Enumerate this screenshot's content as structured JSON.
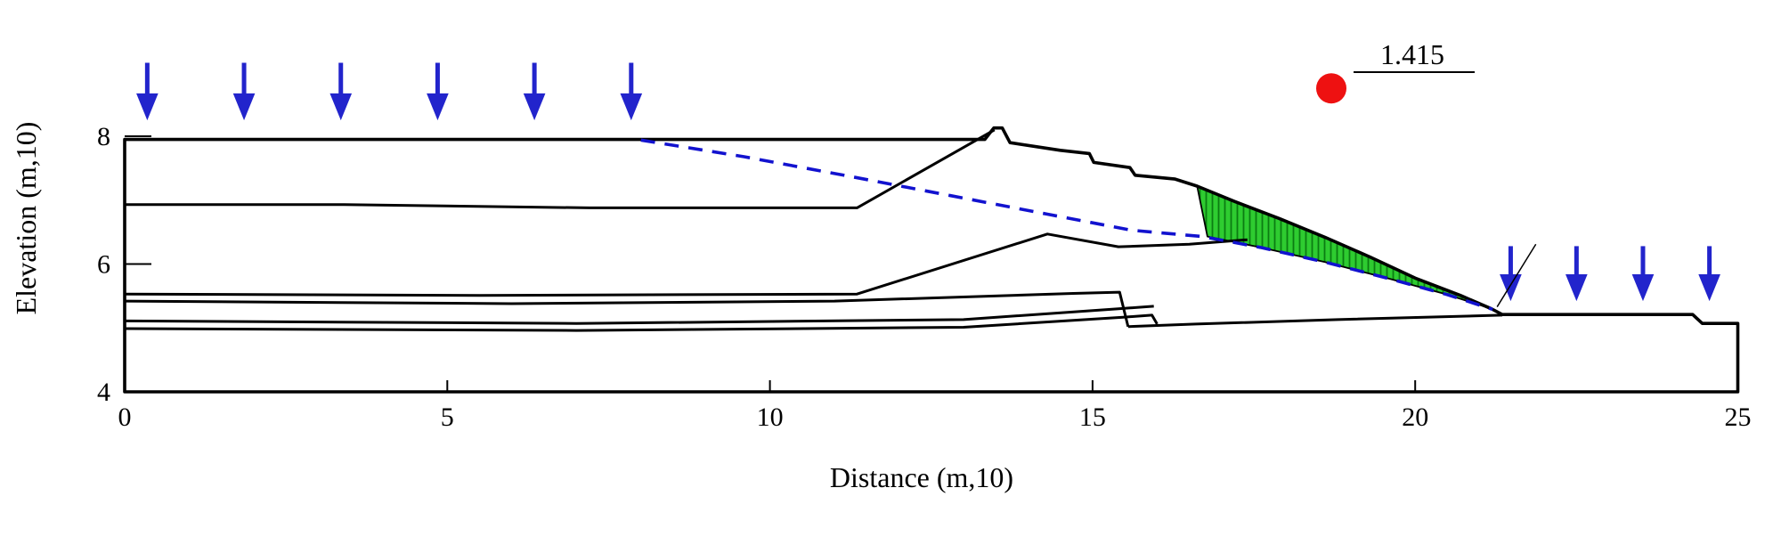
{
  "chart_data": {
    "type": "line",
    "factor_of_safety": "1.415",
    "xlabel": "Distance (m,10)",
    "ylabel": "Elevation (m,10)",
    "xlim": [
      0,
      25
    ],
    "ylim": [
      4,
      8
    ],
    "x_ticks": {
      "values": [
        0,
        5,
        10,
        15,
        20,
        25
      ],
      "marks": [
        5,
        10,
        15,
        20
      ]
    },
    "y_ticks": {
      "values": [
        8,
        6,
        4
      ],
      "marks": [
        6,
        8
      ]
    },
    "slip_center_marker": {
      "x": 18.7,
      "y": 8.75
    },
    "ground_outline": [
      [
        0,
        4
      ],
      [
        0,
        7.95
      ],
      [
        13.33,
        7.95
      ],
      [
        13.47,
        8.13
      ],
      [
        13.6,
        8.13
      ],
      [
        13.72,
        7.9
      ],
      [
        14.5,
        7.78
      ],
      [
        14.95,
        7.73
      ],
      [
        15.02,
        7.59
      ],
      [
        15.58,
        7.51
      ],
      [
        15.66,
        7.39
      ],
      [
        16.28,
        7.33
      ],
      [
        16.62,
        7.22
      ],
      [
        17.2,
        6.98
      ],
      [
        17.9,
        6.71
      ],
      [
        18.6,
        6.42
      ],
      [
        19.3,
        6.11
      ],
      [
        20,
        5.78
      ],
      [
        20.7,
        5.51
      ],
      [
        21.18,
        5.3
      ],
      [
        21.35,
        5.21
      ],
      [
        24.3,
        5.21
      ],
      [
        24.45,
        5.07
      ],
      [
        25,
        5.07
      ],
      [
        25,
        4
      ]
    ],
    "layer_lines": [
      [
        [
          0,
          6.93
        ],
        [
          3.4,
          6.93
        ],
        [
          7.2,
          6.88
        ],
        [
          11.35,
          6.88
        ],
        [
          13.48,
          8.1
        ]
      ],
      [
        [
          0,
          5.53
        ],
        [
          5.5,
          5.51
        ],
        [
          11.35,
          5.53
        ],
        [
          14.3,
          6.47
        ],
        [
          15.4,
          6.27
        ],
        [
          16.5,
          6.31
        ],
        [
          17.4,
          6.38
        ]
      ],
      [
        [
          0,
          5.42
        ],
        [
          6,
          5.38
        ],
        [
          11,
          5.42
        ],
        [
          14.7,
          5.54
        ],
        [
          15.42,
          5.56
        ],
        [
          15.55,
          5.02
        ]
      ],
      [
        [
          0,
          5.11
        ],
        [
          7,
          5.07
        ],
        [
          13,
          5.13
        ],
        [
          15.4,
          5.3
        ],
        [
          15.95,
          5.34
        ]
      ],
      [
        [
          0,
          4.99
        ],
        [
          7,
          4.96
        ],
        [
          13,
          5.01
        ],
        [
          15.5,
          5.17
        ],
        [
          15.92,
          5.2
        ],
        [
          16,
          5.06
        ]
      ],
      [
        [
          15.55,
          5.02
        ],
        [
          16.6,
          5.06
        ],
        [
          18.8,
          5.13
        ],
        [
          21.35,
          5.2
        ]
      ]
    ],
    "slip_surface": [
      [
        8,
        7.94
      ],
      [
        9.6,
        7.68
      ],
      [
        11.2,
        7.38
      ],
      [
        12.8,
        7.07
      ],
      [
        14.3,
        6.78
      ],
      [
        15.6,
        6.53
      ],
      [
        16.7,
        6.43
      ],
      [
        17.6,
        6.26
      ],
      [
        18.6,
        6.03
      ],
      [
        19.6,
        5.77
      ],
      [
        20.5,
        5.52
      ],
      [
        21.2,
        5.29
      ]
    ],
    "slip_mass_polygon": [
      [
        16.62,
        7.22
      ],
      [
        17.2,
        6.98
      ],
      [
        17.9,
        6.71
      ],
      [
        18.6,
        6.42
      ],
      [
        19.3,
        6.11
      ],
      [
        20,
        5.78
      ],
      [
        20.7,
        5.51
      ],
      [
        21.18,
        5.3
      ],
      [
        20.5,
        5.52
      ],
      [
        19.6,
        5.77
      ],
      [
        18.6,
        6.03
      ],
      [
        17.6,
        6.26
      ],
      [
        16.78,
        6.43
      ]
    ],
    "toe_annotation_line": [
      [
        21.27,
        5.33
      ],
      [
        21.87,
        6.31
      ]
    ],
    "load_arrows": {
      "crest": {
        "x": [
          0.35,
          1.85,
          3.35,
          4.85,
          6.35,
          7.85
        ],
        "top": 9.15,
        "tip": 8.25
      },
      "bench": {
        "x": [
          21.48,
          22.5,
          23.53,
          24.56
        ],
        "top": 6.28,
        "tip": 5.42
      }
    },
    "colors": {
      "outline": "#000000",
      "slip_blue": "#1212cf",
      "arrow_blue": "#2224cc",
      "mass_green": "#2ecc30",
      "hatch_green": "#0b7c12",
      "marker_red": "#ee1111",
      "background": "#ffffff"
    }
  }
}
